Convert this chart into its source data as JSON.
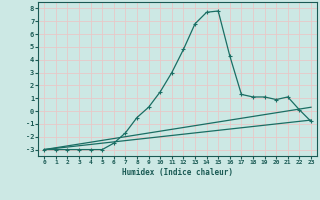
{
  "xlabel": "Humidex (Indice chaleur)",
  "bg_color": "#cce8e4",
  "grid_color": "#e8c8c8",
  "line_color": "#1a6e64",
  "xlim": [
    -0.5,
    23.5
  ],
  "ylim": [
    -3.5,
    8.5
  ],
  "xticks": [
    0,
    1,
    2,
    3,
    4,
    5,
    6,
    7,
    8,
    9,
    10,
    11,
    12,
    13,
    14,
    15,
    16,
    17,
    18,
    19,
    20,
    21,
    22,
    23
  ],
  "yticks": [
    -3,
    -2,
    -1,
    0,
    1,
    2,
    3,
    4,
    5,
    6,
    7,
    8
  ],
  "line1_x": [
    0,
    23
  ],
  "line1_y": [
    -3.0,
    -0.7
  ],
  "line2_x": [
    0,
    23
  ],
  "line2_y": [
    -3.0,
    0.3
  ],
  "line3_x": [
    0,
    1,
    2,
    3,
    4,
    5,
    6,
    7,
    8,
    9,
    10,
    11,
    12,
    13,
    14,
    15,
    16,
    17,
    18,
    19,
    20,
    21,
    22,
    23
  ],
  "line3_y": [
    -3,
    -3,
    -3,
    -3,
    -3,
    -3,
    -2.5,
    -1.7,
    -0.5,
    0.3,
    1.5,
    3.0,
    4.8,
    6.8,
    7.7,
    7.8,
    4.3,
    1.3,
    1.1,
    1.1,
    0.9,
    1.1,
    0.1,
    -0.8
  ]
}
